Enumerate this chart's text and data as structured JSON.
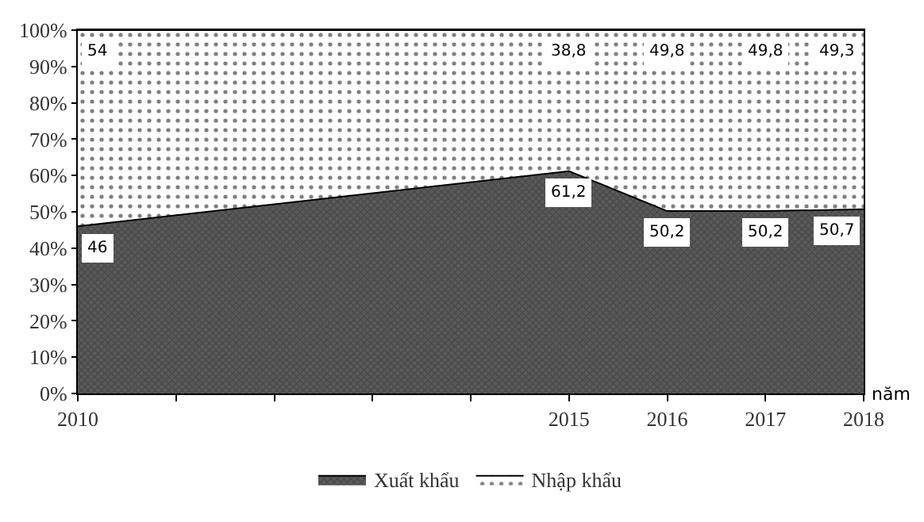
{
  "chart_data": {
    "type": "area",
    "stacked": true,
    "xlabel": "năm",
    "x": [
      2010,
      2015,
      2016,
      2017,
      2018
    ],
    "series": [
      {
        "name": "Xuất khẩu",
        "color": "#5a5a5a",
        "values": [
          46,
          61.2,
          50.2,
          50.2,
          50.7
        ],
        "value_labels": [
          "46",
          "61,2",
          "50,2",
          "50,2",
          "50,7"
        ]
      },
      {
        "name": "Nhập khẩu",
        "color": "#ffffff",
        "values": [
          54,
          38.8,
          49.8,
          49.8,
          49.3
        ],
        "value_labels": [
          "54",
          "38,8",
          "49,8",
          "49,8",
          "49,3"
        ]
      }
    ],
    "xlim": [
      2010,
      2018
    ],
    "xticks": [
      2010,
      {
        "value": 2011,
        "label": null
      },
      {
        "value": 2012,
        "label": null
      },
      {
        "value": 2013,
        "label": null
      },
      {
        "value": 2014,
        "label": null
      },
      2015,
      2016,
      2017,
      2018
    ],
    "ylim": [
      0,
      100
    ],
    "yticks": [
      {
        "value": 0,
        "label": "0%"
      },
      {
        "value": 10,
        "label": "10%"
      },
      {
        "value": 20,
        "label": "20%"
      },
      {
        "value": 30,
        "label": "30%"
      },
      {
        "value": 40,
        "label": "40%"
      },
      {
        "value": 50,
        "label": "50%"
      },
      {
        "value": 60,
        "label": "60%"
      },
      {
        "value": 70,
        "label": "70%"
      },
      {
        "value": 80,
        "label": "80%"
      },
      {
        "value": 90,
        "label": "90%"
      },
      {
        "value": 100,
        "label": "100%"
      }
    ],
    "legend": "bottom"
  }
}
